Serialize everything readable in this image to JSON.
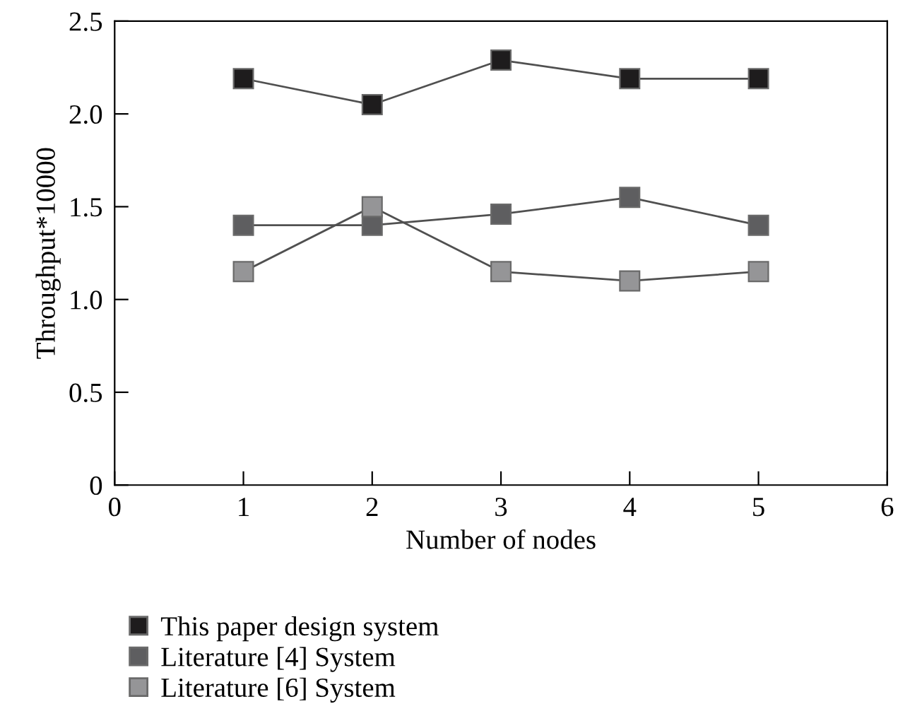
{
  "chart_data": {
    "type": "line",
    "xlabel": "Number of nodes",
    "ylabel": "Throughput*10000",
    "x": [
      1,
      2,
      3,
      4,
      5
    ],
    "series": [
      {
        "name": "This paper design system",
        "color": "#1e1c1d",
        "values": [
          2.19,
          2.05,
          2.29,
          2.19,
          2.19
        ]
      },
      {
        "name": "Literature [4] System",
        "color": "#5e5e60",
        "values": [
          1.4,
          1.4,
          1.46,
          1.55,
          1.4
        ]
      },
      {
        "name": "Literature [6] System",
        "color": "#959597",
        "values": [
          1.15,
          1.5,
          1.15,
          1.1,
          1.15
        ]
      }
    ],
    "xlim": [
      0,
      6
    ],
    "xticks": [
      0,
      1,
      2,
      3,
      4,
      5,
      6
    ],
    "ylim": [
      0,
      2.5
    ],
    "yticks": [
      {
        "value": 0,
        "label": "0"
      },
      {
        "value": 0.5,
        "label": "0.5"
      },
      {
        "value": 1.0,
        "label": "1.0"
      },
      {
        "value": 1.5,
        "label": "1.5"
      },
      {
        "value": 2.0,
        "label": "2.0"
      },
      {
        "value": 2.5,
        "label": "2.5"
      }
    ],
    "marker": "square",
    "line_style": "solid",
    "grid": false,
    "legend": "bottom left"
  }
}
